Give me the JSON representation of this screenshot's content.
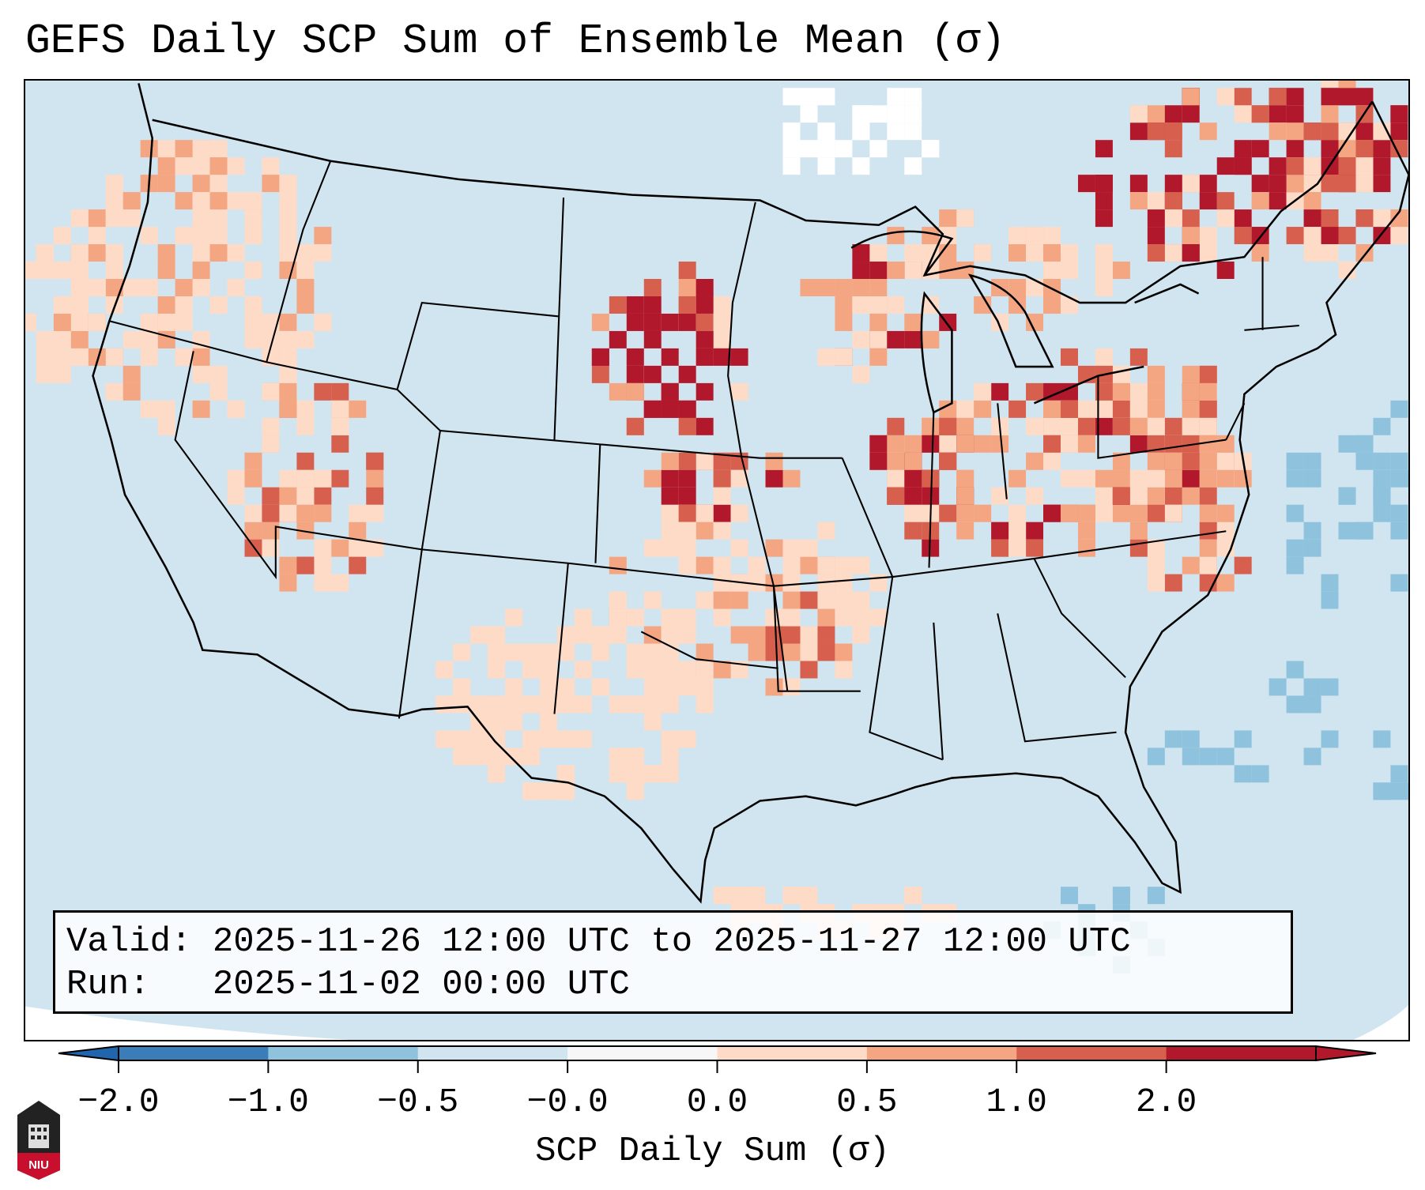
{
  "title": "GEFS Daily SCP Sum of Ensemble Mean (σ)",
  "info": {
    "valid_label": "Valid:",
    "valid_value": "2025-11-26 12:00 UTC to 2025-11-27 12:00 UTC",
    "run_label": "Run:",
    "run_value": "2025-11-02 00:00 UTC"
  },
  "logo_text": "NIU",
  "chart_data": {
    "type": "heatmap",
    "title": "GEFS Daily SCP Sum of Ensemble Mean (σ)",
    "region": "CONUS map",
    "colorbar": {
      "label": "SCP Daily Sum (σ)",
      "tick_labels": [
        "−2.0",
        "−1.0",
        "−0.5",
        "−0.0",
        "0.0",
        "0.5",
        "1.0",
        "2.0"
      ],
      "bins": [
        -2.0,
        -1.0,
        -0.5,
        -0.0,
        0.0,
        0.5,
        1.0,
        2.0
      ],
      "colors": [
        "#3a7db8",
        "#8fc3dd",
        "#d1e5f0",
        "#f7f7f7",
        "#fddbc7",
        "#f4a582",
        "#d6604d",
        "#b2182b"
      ],
      "extend_low_color": "#2166ac",
      "extend_high_color": "#b2182b",
      "extend": "both"
    },
    "background_value_color": "#d1e5f0",
    "highlights": [
      {
        "area": "South Dakota / Nebraska",
        "level": "> 1.0"
      },
      {
        "area": "Quebec / Northern New England",
        "level": "> 1.0"
      },
      {
        "area": "Ohio Valley / Pennsylvania",
        "level": "0.5 to 1.0"
      },
      {
        "area": "Utah / Arizona",
        "level": "0.0 to 1.0"
      },
      {
        "area": "Southern Plains / Arkansas",
        "level": "0.0 to 0.5"
      }
    ]
  }
}
